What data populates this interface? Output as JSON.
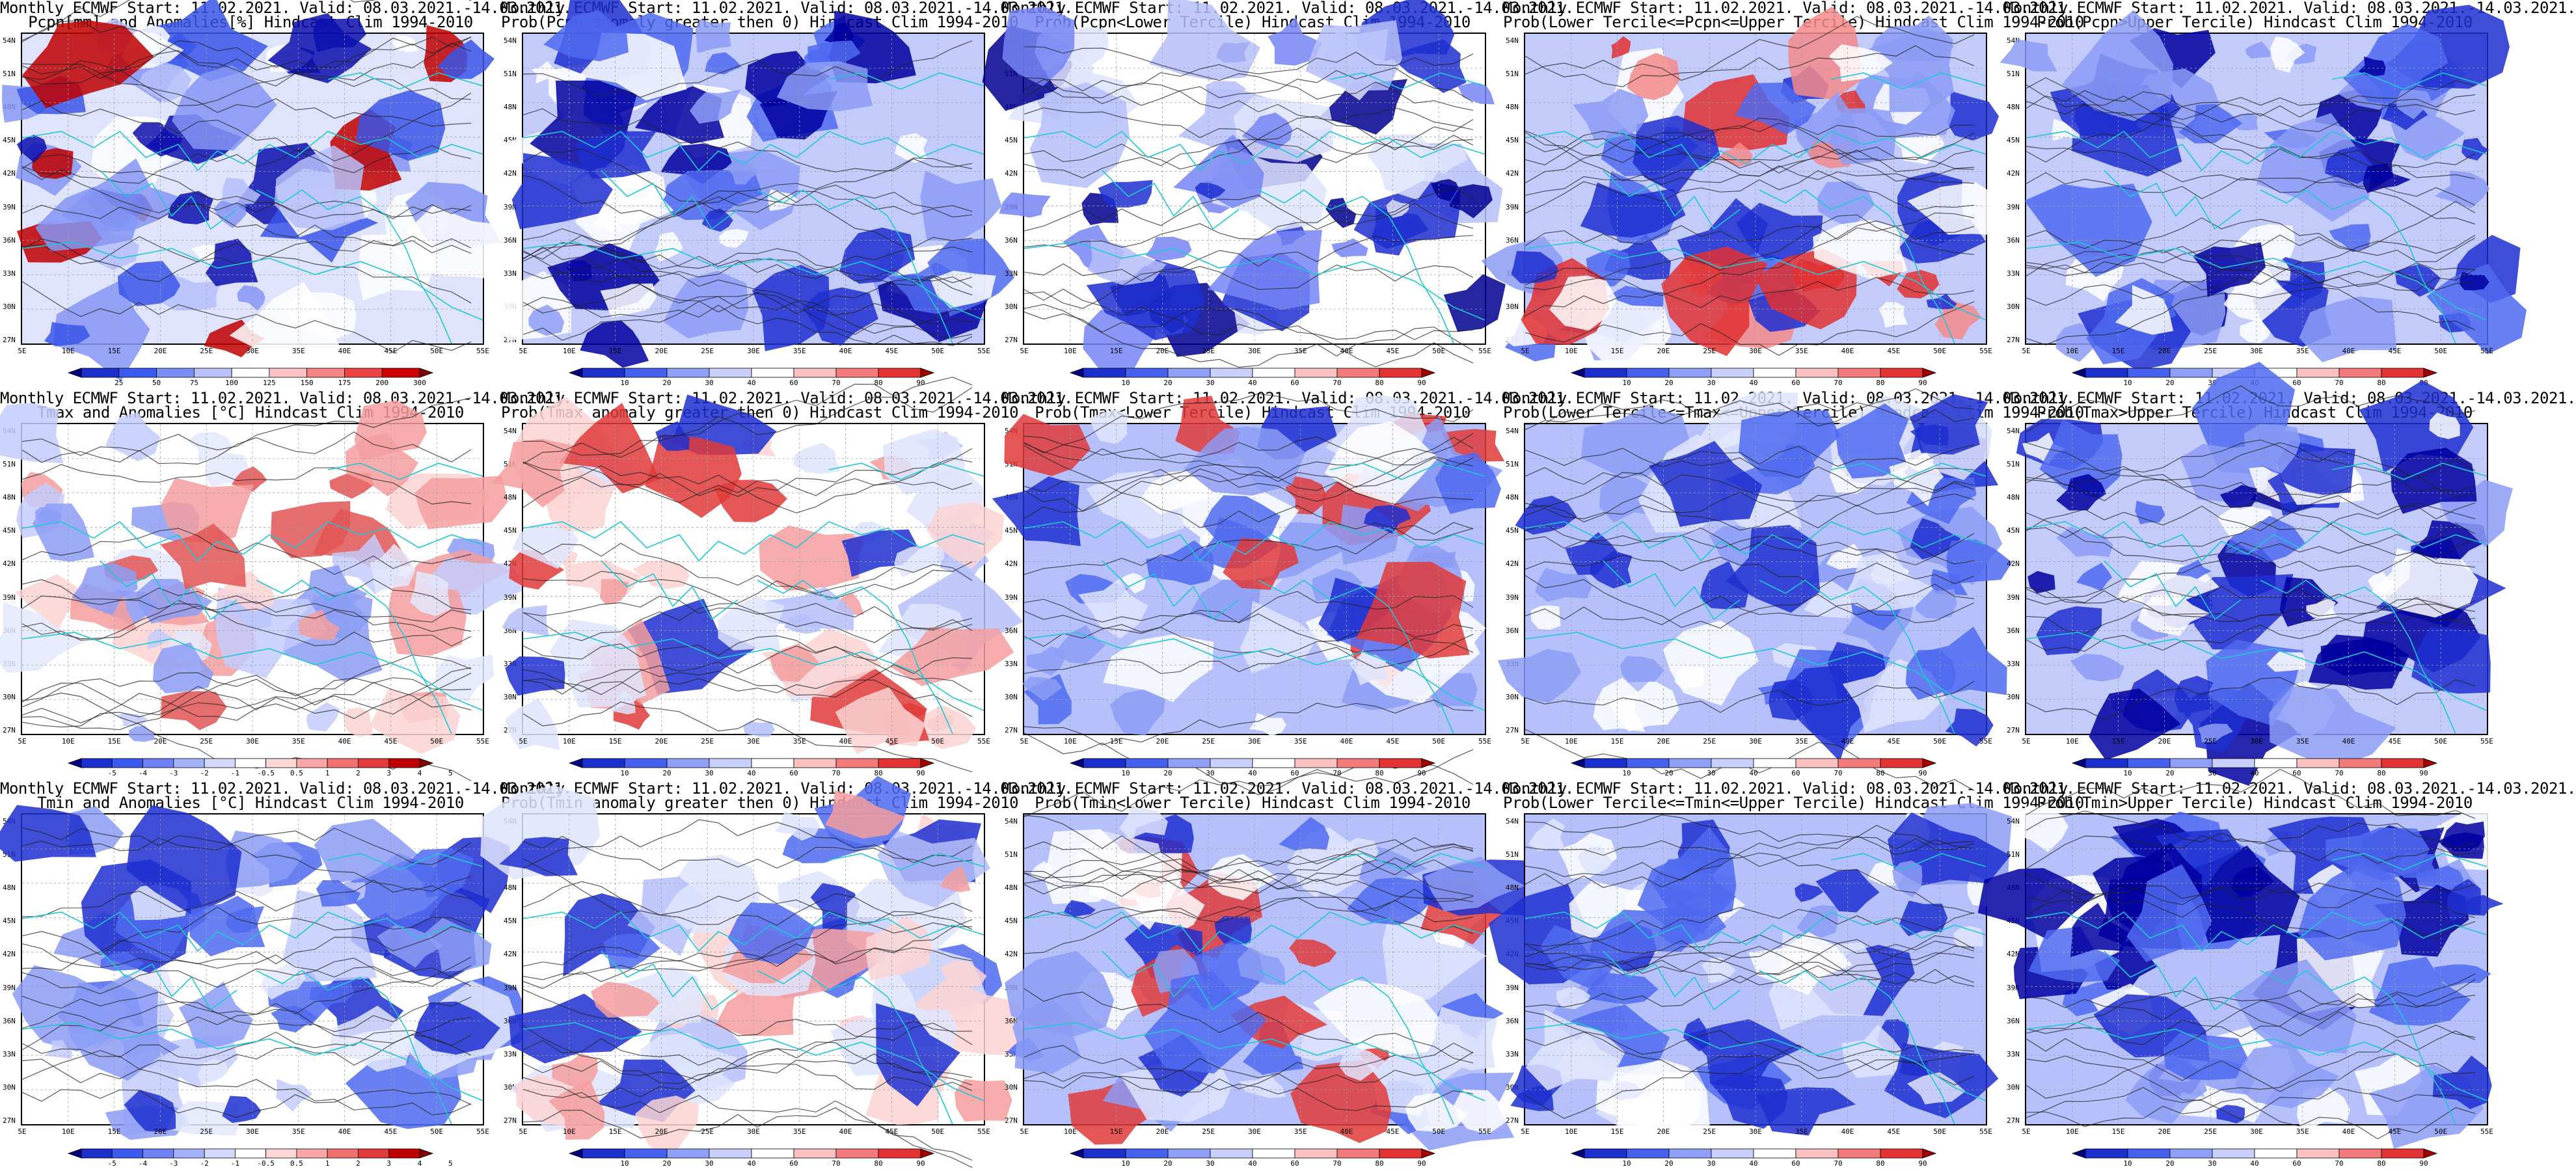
{
  "header_prefix": "Monthly ECMWF Start: 11.02.2021. Valid: 08.03.2021.-14.03.2021.",
  "lat_labels": [
    "54N",
    "51N",
    "48N",
    "45N",
    "42N",
    "39N",
    "36N",
    "33N",
    "30N",
    "27N"
  ],
  "lon_labels": [
    "5E",
    "10E",
    "15E",
    "20E",
    "25E",
    "30E",
    "35E",
    "40E",
    "45E",
    "50E",
    "55E"
  ],
  "colorbars": {
    "precip_anom": {
      "labels": [
        "25",
        "50",
        "75",
        "100",
        "125",
        "150",
        "175",
        "200",
        "300"
      ],
      "colors": [
        "#000080",
        "#1a2fcc",
        "#3a5af0",
        "#7a8ff6",
        "#b8c2fb",
        "#ffffff",
        "#fbc3c3",
        "#f58585",
        "#ec4343",
        "#cc0000",
        "#800000"
      ]
    },
    "temp_anom": {
      "labels": [
        "-5",
        "-4",
        "-3",
        "-2",
        "-1",
        "-0.5",
        "0.5",
        "1",
        "2",
        "3",
        "4",
        "5"
      ],
      "colors": [
        "#000080",
        "#1a2fcc",
        "#3a5af0",
        "#6f82f5",
        "#a5b2fa",
        "#d3d9fd",
        "#ffffff",
        "#fdd6d6",
        "#f8a6a6",
        "#f07070",
        "#e03a3a",
        "#c00000",
        "#800000"
      ]
    },
    "prob": {
      "labels": [
        "10",
        "20",
        "30",
        "40",
        "60",
        "70",
        "80",
        "90"
      ],
      "colors": [
        "#000080",
        "#1a2fcc",
        "#4660f0",
        "#8e9ff8",
        "#c9d0fc",
        "#ffffff",
        "#fbc0c0",
        "#f27a7a",
        "#e33333",
        "#a00000"
      ]
    }
  },
  "panels": [
    {
      "line2": "Pcpn[mm] and Anomalies[%] Hindcast Clim 1994-2010",
      "cbar": "precip_anom",
      "base": "#dfe4fc",
      "accents": [
        "#ffffff",
        "#b6c0fa",
        "#8595f4",
        "#3a55e8",
        "#0c0fae",
        "#c00000"
      ]
    },
    {
      "line2": "Prob(Pcpn anomaly greater then 0) Hindcast Clim 1994-2010",
      "cbar": "prob",
      "base": "#c3cbfb",
      "accents": [
        "#ffffff",
        "#8c9cf6",
        "#4f6af0",
        "#1f2fd0",
        "#0000a0"
      ]
    },
    {
      "line2": "Prob(Pcpn<Lower Tercile) Hindcast Clim 1994-2010",
      "cbar": "prob",
      "base": "#ffffff",
      "accents": [
        "#dfe4fd",
        "#b6c0fa",
        "#7585f4",
        "#1f2fd0",
        "#000090"
      ]
    },
    {
      "line2": "Prob(Lower Tercile<=Pcpn<=Upper Tercile) Hindcast Clim 1994-2010",
      "cbar": "prob",
      "base": "#c3cbfb",
      "accents": [
        "#ffffff",
        "#8c9cf6",
        "#4f6af0",
        "#1f2fd0",
        "#f48a8a",
        "#e23030"
      ]
    },
    {
      "line2": "Prob(Pcpn>Upper Tercile) Hindcast Clim 1994-2010",
      "cbar": "prob",
      "base": "#c3cbfb",
      "accents": [
        "#ffffff",
        "#8c9cf6",
        "#4f6af0",
        "#1f2fd0",
        "#0000a0"
      ]
    },
    {
      "line2": "Tmax and Anomalies [°C] Hindcast Clim 1994-2010",
      "cbar": "temp_anom",
      "base": "#ffffff",
      "accents": [
        "#e3e7fd",
        "#c3cbfb",
        "#8c9cf6",
        "#fbd3d3",
        "#f49d9d",
        "#e25353"
      ]
    },
    {
      "line2": "Prob(Tmax anomaly greater then 0) Hindcast Clim 1994-2010",
      "cbar": "prob",
      "base": "#ffffff",
      "accents": [
        "#dfe4fd",
        "#b6c0fa",
        "#fbd3d3",
        "#f49d9d",
        "#e03a3a",
        "#1f2fd0"
      ]
    },
    {
      "line2": "Prob(Tmax<Lower Tercile) Hindcast Clim 1994-2010",
      "cbar": "prob",
      "base": "#b6c0fa",
      "accents": [
        "#ffffff",
        "#dfe4fd",
        "#8c9cf6",
        "#4f6af0",
        "#1f2fd0",
        "#e03a3a"
      ]
    },
    {
      "line2": "Prob(Lower Tercile<=Tmax<=Upper Tercile) Hindcast Clim 1994-2010",
      "cbar": "prob",
      "base": "#b6c0fa",
      "accents": [
        "#ffffff",
        "#dfe4fd",
        "#8c9cf6",
        "#4f6af0",
        "#1f2fd0"
      ]
    },
    {
      "line2": "Prob(Tmax>Upper Tercile) Hindcast Clim 1994-2010",
      "cbar": "prob",
      "base": "#c3cbfb",
      "accents": [
        "#ffffff",
        "#8c9cf6",
        "#4f6af0",
        "#1f2fd0",
        "#0000a0"
      ]
    },
    {
      "line2": "Tmin and Anomalies [°C] Hindcast Clim 1994-2010",
      "cbar": "temp_anom",
      "base": "#ffffff",
      "accents": [
        "#e3e7fd",
        "#c3cbfb",
        "#8c9cf6",
        "#4f6af0",
        "#1f2fd0"
      ]
    },
    {
      "line2": "Prob(Tmin anomaly greater then 0) Hindcast Clim 1994-2010",
      "cbar": "prob",
      "base": "#ffffff",
      "accents": [
        "#dfe4fd",
        "#b6c0fa",
        "#fbd3d3",
        "#f49d9d",
        "#4f6af0",
        "#1f2fd0"
      ]
    },
    {
      "line2": "Prob(Tmin<Lower Tercile) Hindcast Clim 1994-2010",
      "cbar": "prob",
      "base": "#b6c0fa",
      "accents": [
        "#ffffff",
        "#dfe4fd",
        "#8c9cf6",
        "#4f6af0",
        "#1f2fd0",
        "#e03a3a"
      ]
    },
    {
      "line2": "Prob(Lower Tercile<=Tmin<=Upper Tercile) Hindcast Clim 1994-2010",
      "cbar": "prob",
      "base": "#b6c0fa",
      "accents": [
        "#ffffff",
        "#dfe4fd",
        "#8c9cf6",
        "#4f6af0",
        "#1f2fd0"
      ]
    },
    {
      "line2": "Prob(Tmin>Upper Tercile) Hindcast Clim 1994-2010",
      "cbar": "prob",
      "base": "#b6c0fa",
      "accents": [
        "#ffffff",
        "#8c9cf6",
        "#4f6af0",
        "#1f2fd0",
        "#0000a0"
      ]
    }
  ]
}
